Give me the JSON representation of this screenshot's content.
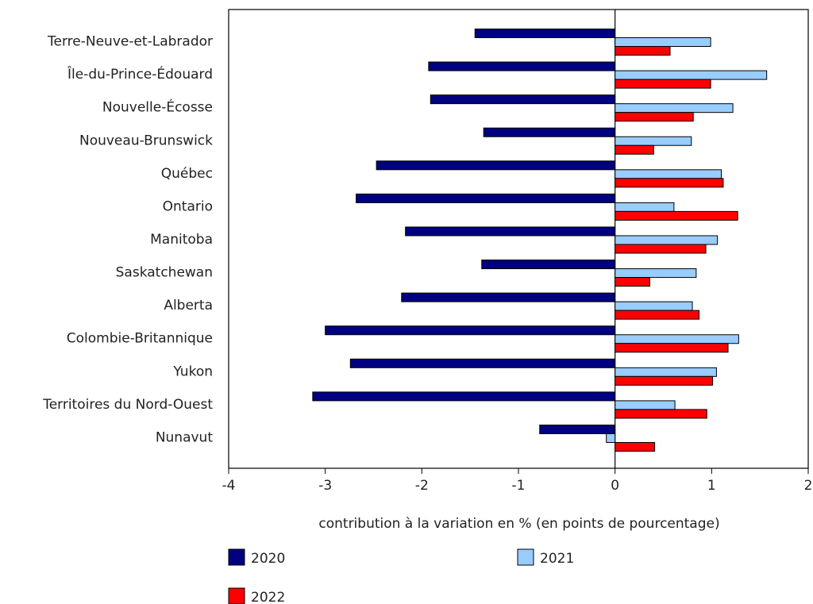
{
  "chart_data": {
    "type": "bar",
    "orientation": "horizontal",
    "categories": [
      "Terre-Neuve-et-Labrador",
      "Île-du-Prince-Édouard",
      "Nouvelle-Écosse",
      "Nouveau-Brunswick",
      "Québec",
      "Ontario",
      "Manitoba",
      "Saskatchewan",
      "Alberta",
      "Colombie-Britannique",
      "Yukon",
      "Territoires du Nord-Ouest",
      "Nunavut"
    ],
    "series": [
      {
        "name": "2020",
        "color": "#000080",
        "values": [
          -1.45,
          -1.93,
          -1.91,
          -1.36,
          -2.47,
          -2.68,
          -2.17,
          -1.38,
          -2.21,
          -3.0,
          -2.74,
          -3.13,
          -0.78
        ]
      },
      {
        "name": "2021",
        "color": "#99ccff",
        "values": [
          0.99,
          1.57,
          1.22,
          0.79,
          1.1,
          0.61,
          1.06,
          0.84,
          0.8,
          1.28,
          1.05,
          0.62,
          -0.09
        ]
      },
      {
        "name": "2022",
        "color": "#ff0000",
        "values": [
          0.57,
          0.99,
          0.81,
          0.4,
          1.12,
          1.27,
          0.94,
          0.36,
          0.87,
          1.17,
          1.01,
          0.95,
          0.41
        ]
      }
    ],
    "xlabel": "contribution à la variation en % (en points de pourcentage)",
    "ylabel": "",
    "xlim": [
      -4,
      2
    ],
    "xticks": [
      -4,
      -3,
      -2,
      -1,
      0,
      1,
      2
    ],
    "grid": false,
    "legend_position": "bottom"
  }
}
